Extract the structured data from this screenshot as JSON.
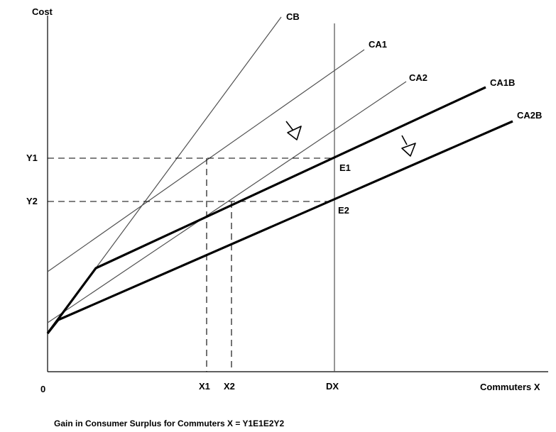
{
  "labels": {
    "cost": "Cost",
    "commuters_x": "Commuters X",
    "origin": "0",
    "cb": "CB",
    "ca1": "CA1",
    "ca2": "CA2",
    "ca1b": "CA1B",
    "ca2b": "CA2B",
    "y1": "Y1",
    "y2": "Y2",
    "x1": "X1",
    "x2": "X2",
    "dx": "DX",
    "e1": "E1",
    "e2": "E2"
  },
  "caption": "Gain in Consumer Surplus for Commuters X = Y1E1E2Y2",
  "icons": {
    "shift_arrow_1": "down-arrow-icon",
    "shift_arrow_2": "down-arrow-icon"
  }
}
